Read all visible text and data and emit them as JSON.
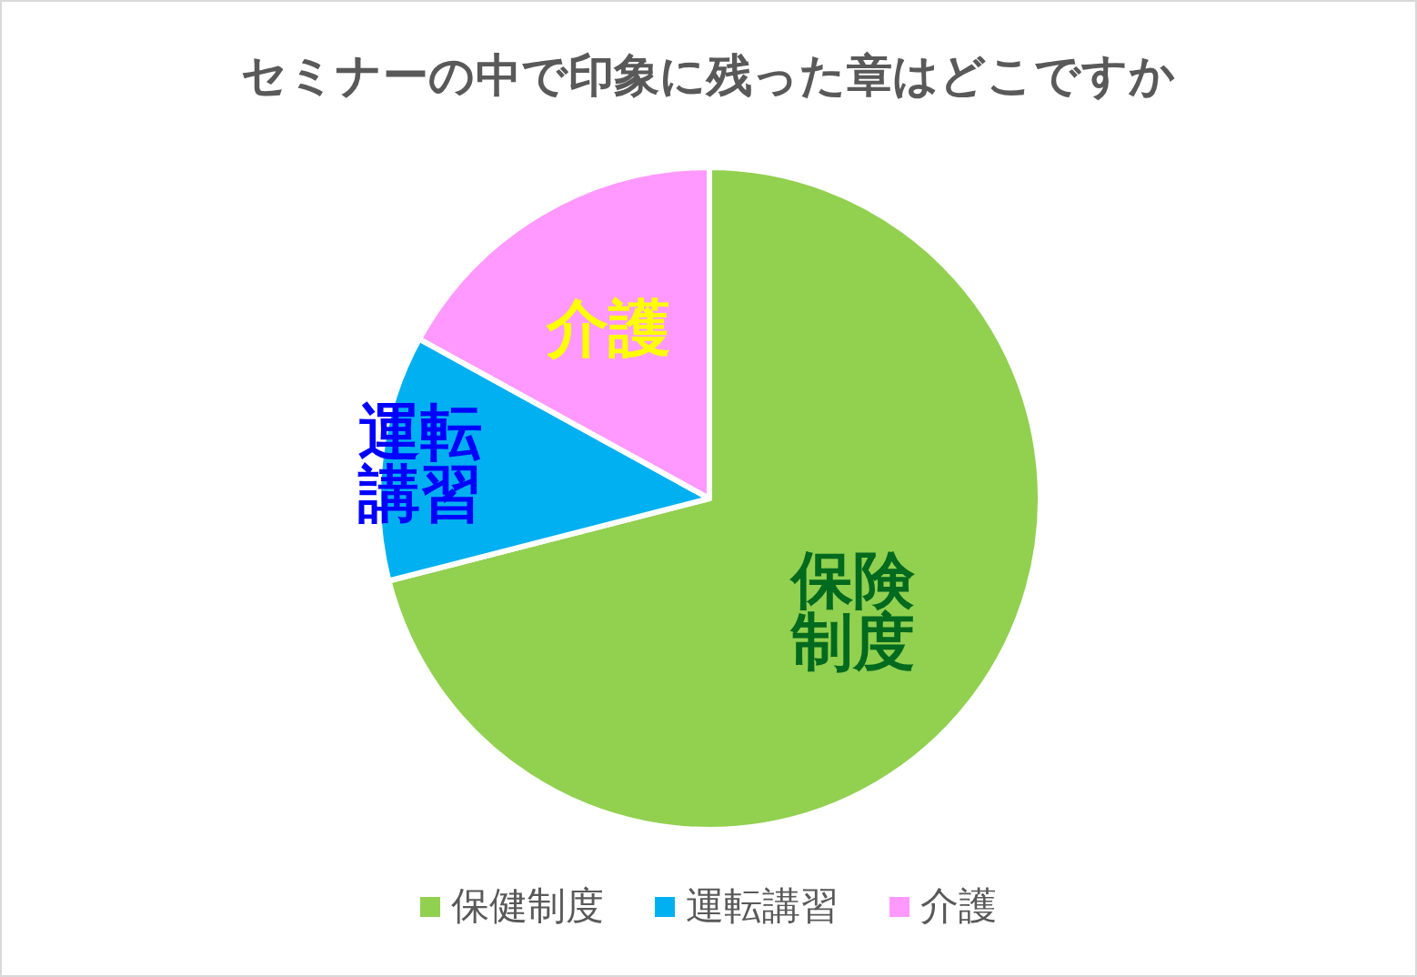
{
  "chart_data": {
    "type": "pie",
    "title": "セミナーの中で印象に残った章はどこですか",
    "categories": [
      "保健制度",
      "運転講習",
      "介護"
    ],
    "values": [
      71,
      12,
      17
    ],
    "colors": [
      "#92d050",
      "#00b0f0",
      "#ff99ff"
    ],
    "annotations": [
      "保険制度",
      "運転講習",
      "介護"
    ],
    "legend": "bottom"
  }
}
